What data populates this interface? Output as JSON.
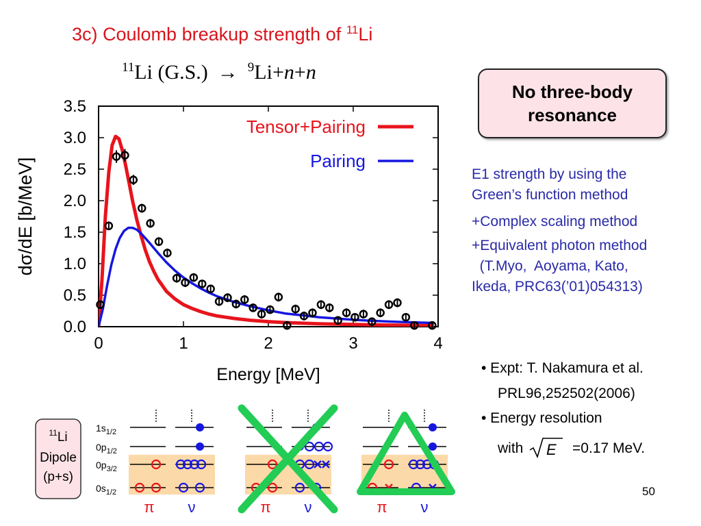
{
  "slide": {
    "title_prefix": "3c) Coulomb breakup strength of ",
    "title_sup": "11",
    "title_element": "Li",
    "reaction": {
      "lhs_sup": "11",
      "lhs": "Li (G.S.)",
      "arrow": "→",
      "rhs_sup": "9",
      "rhs_li": "Li",
      "plus1": "+",
      "n1": "n",
      "plus2": "+",
      "n2": "n"
    },
    "callout": {
      "line1": "No three-body",
      "line2": "resonance",
      "bg_color": "#fde3e8"
    },
    "method_notes": [
      "E1 strength by using the",
      "Green’s function method",
      "+Complex scaling method",
      "+Equivalent photon method",
      "  (T.Myo,  Aoyama, Kato,",
      "Ikeda, PRC63(’01)054313)"
    ],
    "expt": {
      "line1": "• Expt:  T. Nakamura et al.",
      "line2": "PRL96,252502(2006)",
      "line3": "• Energy resolution",
      "with_label": "with",
      "sqrt_var": "E",
      "resolution": "=0.17 MeV."
    },
    "page_number": "50"
  },
  "chart_data": {
    "type": "line",
    "xlabel": "Energy [MeV]",
    "ylabel": "dσ/dE [b/MeV]",
    "xlim": [
      0,
      4
    ],
    "ylim": [
      0,
      3.5
    ],
    "xticks": [
      "0",
      "1",
      "2",
      "3",
      "4"
    ],
    "yticks": [
      "0.0",
      "0.5",
      "1.0",
      "1.5",
      "2.0",
      "2.5",
      "3.0",
      "3.5"
    ],
    "grid": false,
    "legend_position": "top-right",
    "series": [
      {
        "name": "Tensor+Pairing",
        "color": "#e8141c",
        "x": [
          0,
          0.04,
          0.08,
          0.12,
          0.16,
          0.2,
          0.24,
          0.28,
          0.32,
          0.36,
          0.4,
          0.45,
          0.5,
          0.55,
          0.6,
          0.65,
          0.7,
          0.8,
          0.9,
          1.0,
          1.1,
          1.2,
          1.3,
          1.4,
          1.5,
          1.6,
          1.8,
          2.0,
          2.2,
          2.4,
          2.6,
          2.8,
          3.0,
          3.2,
          3.4,
          3.6,
          3.8,
          3.95
        ],
        "y": [
          0,
          0.75,
          1.75,
          2.45,
          2.88,
          3.02,
          2.98,
          2.8,
          2.55,
          2.28,
          2.0,
          1.7,
          1.45,
          1.22,
          1.03,
          0.88,
          0.75,
          0.56,
          0.44,
          0.35,
          0.29,
          0.24,
          0.2,
          0.17,
          0.15,
          0.13,
          0.1,
          0.08,
          0.065,
          0.055,
          0.047,
          0.04,
          0.035,
          0.03,
          0.026,
          0.023,
          0.02,
          0.018
        ]
      },
      {
        "name": "Pairing",
        "color": "#1616e0",
        "x": [
          0,
          0.05,
          0.1,
          0.15,
          0.2,
          0.25,
          0.3,
          0.35,
          0.4,
          0.45,
          0.5,
          0.6,
          0.7,
          0.8,
          0.9,
          1.0,
          1.1,
          1.2,
          1.3,
          1.4,
          1.6,
          1.8,
          2.0,
          2.2,
          2.4,
          2.6,
          2.8,
          3.0,
          3.2,
          3.4,
          3.6,
          3.8,
          3.95
        ],
        "y": [
          0,
          0.28,
          0.65,
          0.98,
          1.23,
          1.41,
          1.52,
          1.57,
          1.57,
          1.54,
          1.48,
          1.33,
          1.17,
          1.02,
          0.89,
          0.78,
          0.69,
          0.61,
          0.54,
          0.48,
          0.39,
          0.32,
          0.26,
          0.21,
          0.18,
          0.15,
          0.13,
          0.11,
          0.095,
          0.083,
          0.073,
          0.065,
          0.06
        ]
      }
    ],
    "experiment": {
      "x": [
        0.02,
        0.12,
        0.21,
        0.31,
        0.41,
        0.51,
        0.61,
        0.71,
        0.81,
        0.92,
        1.02,
        1.12,
        1.22,
        1.32,
        1.42,
        1.52,
        1.62,
        1.72,
        1.82,
        1.92,
        2.02,
        2.12,
        2.22,
        2.32,
        2.42,
        2.52,
        2.62,
        2.72,
        2.82,
        2.92,
        3.02,
        3.12,
        3.22,
        3.32,
        3.42,
        3.52,
        3.62,
        3.72,
        3.93
      ],
      "y": [
        0.35,
        1.6,
        2.7,
        2.72,
        2.33,
        1.88,
        1.64,
        1.35,
        1.17,
        0.77,
        0.7,
        0.78,
        0.68,
        0.6,
        0.4,
        0.46,
        0.36,
        0.43,
        0.3,
        0.2,
        0.27,
        0.47,
        0.02,
        0.28,
        0.17,
        0.22,
        0.35,
        0.3,
        0.1,
        0.22,
        0.15,
        0.2,
        0.08,
        0.22,
        0.35,
        0.38,
        0.15,
        0.02,
        0.02
      ],
      "err": [
        0.05,
        0.07,
        0.1,
        0.1,
        0.08,
        0.07,
        0.07,
        0.07,
        0.07,
        0.07,
        0.07,
        0.06,
        0.06,
        0.06,
        0.07,
        0.07,
        0.07,
        0.07,
        0.06,
        0.07,
        0.06,
        0.07,
        0.05,
        0.07,
        0.07,
        0.07,
        0.07,
        0.07,
        0.06,
        0.07,
        0.06,
        0.07,
        0.05,
        0.07,
        0.07,
        0.07,
        0.06,
        0.05,
        0.05
      ]
    }
  },
  "level_diagram": {
    "box_label_sup": "11",
    "box_label_li": "Li",
    "box_label_line2": "Dipole",
    "box_label_line3": "(p+s)",
    "levels": [
      "1s",
      "0p",
      "0p",
      "0s"
    ],
    "level_subscripts": [
      "1/2",
      "1/2",
      "3/2",
      "1/2"
    ],
    "pi_label": "π",
    "nu_label": "ν",
    "cross_color": "#22cc55",
    "triangle_color": "#22cc55",
    "highlight_color": "#fbd9a8",
    "proton_color": "#e8141c",
    "neutron_color": "#1616e0"
  }
}
